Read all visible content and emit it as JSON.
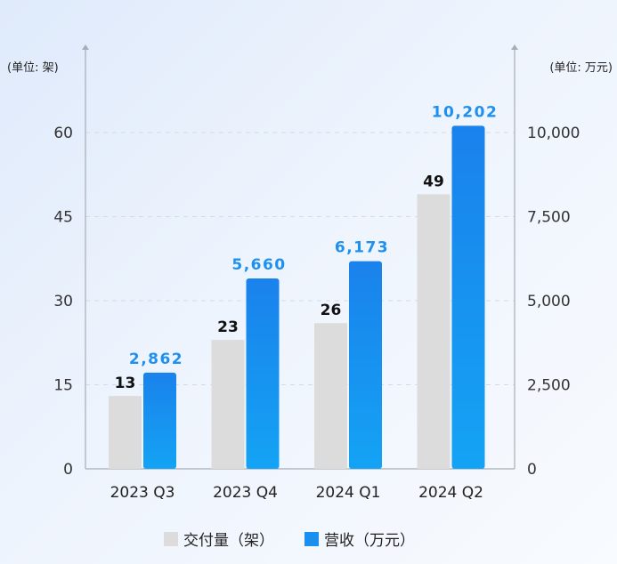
{
  "chart_data": {
    "type": "bar",
    "categories": [
      "2023 Q3",
      "2023 Q4",
      "2024 Q1",
      "2024 Q2"
    ],
    "series": [
      {
        "name": "交付量（架）",
        "values": [
          13,
          23,
          26,
          49
        ],
        "axis": "left",
        "color": "#dcdcdc",
        "labels": [
          "13",
          "23",
          "26",
          "49"
        ]
      },
      {
        "name": "营收（万元）",
        "values": [
          2862,
          5660,
          6173,
          10202
        ],
        "axis": "right",
        "color": "#1a8ff0",
        "labels": [
          "2,862",
          "5,660",
          "6,173",
          "10,202"
        ]
      }
    ],
    "y_left": {
      "unit_label": "(单位: 架)",
      "range": [
        0,
        70
      ],
      "ticks": [
        0,
        15,
        30,
        45,
        60
      ],
      "tick_labels": [
        "0",
        "15",
        "30",
        "45",
        "60"
      ]
    },
    "y_right": {
      "unit_label": "(单位: 万元)",
      "range": [
        0,
        11666.67
      ],
      "ticks": [
        0,
        2500,
        5000,
        7500,
        10000
      ],
      "tick_labels": [
        "0",
        "2,500",
        "5,000",
        "7,500",
        "10,000"
      ]
    },
    "grid": true,
    "legend": "bottom-center"
  }
}
